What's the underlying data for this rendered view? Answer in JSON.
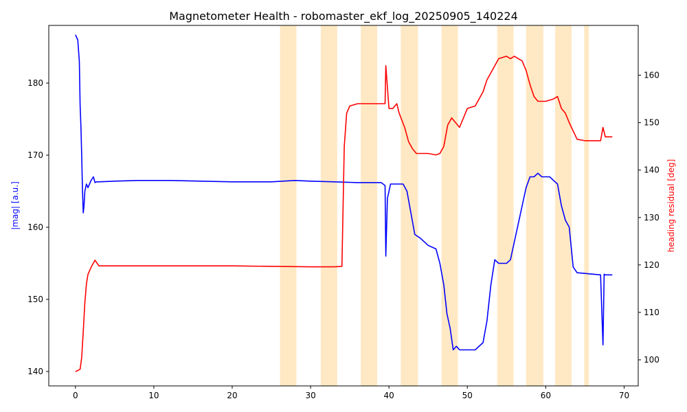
{
  "chart_data": {
    "type": "line",
    "title": "Magnetometer Health - robomaster_ekf_log_20250905_140224",
    "xlabel": "",
    "y_left": {
      "label": "|mag| [a.u.]",
      "color": "#0000ff",
      "lim": [
        138,
        188
      ],
      "ticks": [
        140,
        150,
        160,
        170,
        180
      ]
    },
    "y_right": {
      "label": "heading residual [deg]",
      "color": "#ff0000",
      "lim": [
        94.5,
        170.5
      ],
      "ticks": [
        100,
        110,
        120,
        130,
        140,
        150,
        160
      ]
    },
    "xlim": [
      -3.4,
      71.8
    ],
    "xticks": [
      0,
      10,
      20,
      30,
      40,
      50,
      60,
      70
    ],
    "grid": false,
    "shaded_regions_color": "#ffe9c4",
    "shaded_regions": [
      [
        26.1,
        28.2
      ],
      [
        31.3,
        33.4
      ],
      [
        36.4,
        38.5
      ],
      [
        41.5,
        43.7
      ],
      [
        46.7,
        48.8
      ],
      [
        53.8,
        55.9
      ],
      [
        57.5,
        59.7
      ],
      [
        61.2,
        63.3
      ],
      [
        64.9,
        65.5
      ]
    ],
    "series": [
      {
        "axis": "left",
        "color": "#0000ff",
        "x": [
          0.0,
          0.3,
          0.5,
          0.6,
          0.7,
          0.8,
          0.9,
          1.0,
          1.1,
          1.2,
          1.4,
          1.6,
          1.8,
          2.0,
          2.3,
          2.5,
          2.7,
          3.0,
          5,
          8,
          12,
          16,
          20,
          25,
          28,
          30,
          33,
          36,
          39,
          39.5,
          39.6,
          39.8,
          40.2,
          41,
          41.8,
          42.3,
          42.8,
          43.3,
          44,
          45,
          46,
          46.5,
          47,
          47.4,
          47.8,
          48.2,
          48.6,
          49,
          50,
          51,
          52,
          52.5,
          53,
          53.5,
          54,
          55,
          55.5,
          56,
          56.5,
          57,
          57.5,
          58,
          58.5,
          59,
          59.5,
          60,
          60.5,
          61,
          61.5,
          62,
          62.5,
          63,
          63.5,
          64,
          65,
          67,
          67.3,
          67.45,
          67.6,
          68,
          68.5
        ],
        "y": [
          186.7,
          186.0,
          183,
          177,
          174,
          170,
          165,
          162,
          163,
          165,
          166,
          165.5,
          166,
          166.5,
          167,
          166.2,
          166.3,
          166.3,
          166.4,
          166.5,
          166.5,
          166.4,
          166.3,
          166.3,
          166.5,
          166.4,
          166.3,
          166.2,
          166.2,
          165.8,
          156,
          164,
          166,
          166,
          166,
          165,
          162,
          159,
          158.5,
          157.5,
          157,
          155,
          152,
          148,
          146,
          143,
          143.5,
          143,
          143,
          143,
          144,
          147,
          152,
          155.5,
          155,
          155,
          155.5,
          158,
          160.5,
          163,
          165.5,
          167,
          167,
          167.5,
          167,
          167,
          167,
          166.5,
          166,
          163,
          161,
          160,
          154.5,
          153.7,
          153.6,
          153.4,
          143.7,
          153.5,
          153.4,
          153.4,
          153.4
        ]
      },
      {
        "axis": "right",
        "color": "#ff0000",
        "x": [
          0.0,
          0.6,
          0.8,
          1.0,
          1.2,
          1.4,
          1.6,
          2.0,
          2.5,
          3.0,
          10,
          20,
          30,
          33,
          34.0,
          34.3,
          34.6,
          35,
          36,
          37,
          38,
          39.5,
          39.6,
          40,
          40.5,
          41,
          41.3,
          42,
          42.5,
          43,
          43.5,
          44,
          45,
          46,
          46.5,
          47,
          47.5,
          48,
          49,
          50,
          51,
          52,
          52.5,
          53,
          53.5,
          54,
          55,
          55.5,
          56,
          56.5,
          57,
          57.5,
          58,
          58.5,
          59,
          60,
          61,
          61.5,
          62,
          62.5,
          63,
          64,
          65,
          66,
          67,
          67.3,
          67.6,
          68,
          68.5
        ],
        "y": [
          97.5,
          98.0,
          100.5,
          106,
          112,
          116,
          118,
          119.5,
          121,
          119.8,
          119.8,
          119.8,
          119.6,
          119.6,
          119.7,
          145,
          152,
          153.5,
          154,
          154,
          154,
          154,
          162,
          153,
          153,
          154,
          152,
          149,
          146,
          144.5,
          143.5,
          143.5,
          143.5,
          143.2,
          143.5,
          145,
          149.5,
          151,
          149,
          153,
          153.5,
          156.5,
          159,
          160.5,
          162,
          163.5,
          164,
          163.5,
          164,
          163.5,
          163,
          161,
          158,
          155.5,
          154.5,
          154.5,
          155,
          155.5,
          153,
          152,
          150,
          146.5,
          146.2,
          146.2,
          146.2,
          149,
          147,
          147,
          147
        ]
      }
    ]
  }
}
